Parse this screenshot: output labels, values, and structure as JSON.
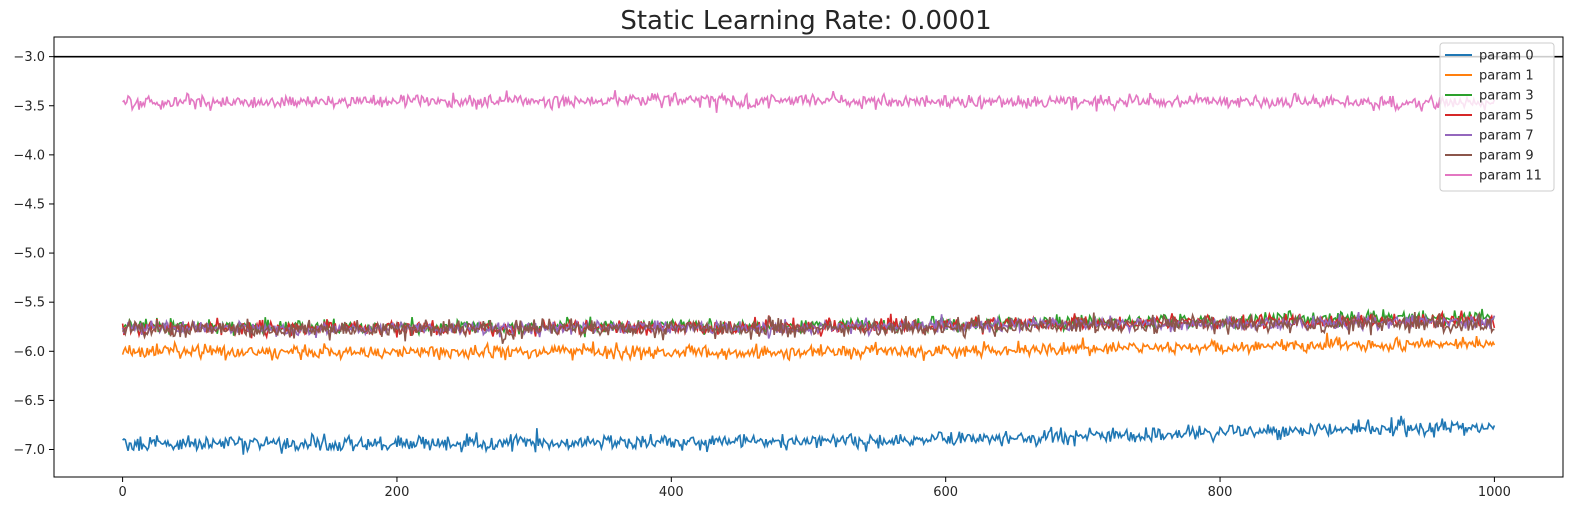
{
  "chart_data": {
    "type": "line",
    "title": "Static Learning Rate: 0.0001",
    "xlabel": "",
    "ylabel": "",
    "xlim": [
      -50,
      1050
    ],
    "ylim": [
      -7.28,
      -2.8
    ],
    "x_ticks": [
      0,
      200,
      400,
      600,
      800,
      1000
    ],
    "x_tick_labels": [
      "0",
      "200",
      "400",
      "600",
      "800",
      "1000"
    ],
    "y_ticks": [
      -3.0,
      -3.5,
      -4.0,
      -4.5,
      -5.0,
      -5.5,
      -6.0,
      -6.5,
      -7.0
    ],
    "y_tick_labels": [
      "−3.0",
      "−3.5",
      "−4.0",
      "−4.5",
      "−5.0",
      "−5.5",
      "−6.0",
      "−6.5",
      "−7.0"
    ],
    "grid": false,
    "legend_position": "top-right",
    "reference_line": {
      "y": -3.0,
      "color": "#000000"
    },
    "x_range": [
      0,
      1000
    ],
    "series": [
      {
        "name": "param 0",
        "color": "#1f77b4",
        "noise": 0.04,
        "trend": [
          [
            0,
            -6.94
          ],
          [
            200,
            -6.94
          ],
          [
            400,
            -6.93
          ],
          [
            500,
            -6.92
          ],
          [
            600,
            -6.9
          ],
          [
            700,
            -6.87
          ],
          [
            800,
            -6.83
          ],
          [
            900,
            -6.79
          ],
          [
            1000,
            -6.77
          ]
        ]
      },
      {
        "name": "param 1",
        "color": "#ff7f0e",
        "noise": 0.035,
        "trend": [
          [
            0,
            -6.0
          ],
          [
            200,
            -6.01
          ],
          [
            400,
            -6.01
          ],
          [
            500,
            -6.01
          ],
          [
            600,
            -5.99
          ],
          [
            700,
            -5.97
          ],
          [
            800,
            -5.96
          ],
          [
            900,
            -5.93
          ],
          [
            1000,
            -5.92
          ]
        ]
      },
      {
        "name": "param 3",
        "color": "#2ca02c",
        "noise": 0.035,
        "trend": [
          [
            0,
            -5.74
          ],
          [
            200,
            -5.76
          ],
          [
            400,
            -5.75
          ],
          [
            500,
            -5.74
          ],
          [
            600,
            -5.72
          ],
          [
            700,
            -5.71
          ],
          [
            800,
            -5.69
          ],
          [
            900,
            -5.66
          ],
          [
            1000,
            -5.65
          ]
        ]
      },
      {
        "name": "param 5",
        "color": "#d62728",
        "noise": 0.035,
        "trend": [
          [
            0,
            -5.75
          ],
          [
            200,
            -5.77
          ],
          [
            400,
            -5.76
          ],
          [
            500,
            -5.76
          ],
          [
            600,
            -5.73
          ],
          [
            700,
            -5.72
          ],
          [
            800,
            -5.7
          ],
          [
            900,
            -5.69
          ],
          [
            1000,
            -5.68
          ]
        ]
      },
      {
        "name": "param 7",
        "color": "#9467bd",
        "noise": 0.035,
        "trend": [
          [
            0,
            -5.76
          ],
          [
            200,
            -5.77
          ],
          [
            400,
            -5.76
          ],
          [
            500,
            -5.76
          ],
          [
            600,
            -5.74
          ],
          [
            700,
            -5.73
          ],
          [
            800,
            -5.72
          ],
          [
            900,
            -5.71
          ],
          [
            1000,
            -5.7
          ]
        ]
      },
      {
        "name": "param 9",
        "color": "#8c564b",
        "noise": 0.045,
        "trend": [
          [
            0,
            -5.77
          ],
          [
            200,
            -5.78
          ],
          [
            400,
            -5.77
          ],
          [
            500,
            -5.77
          ],
          [
            600,
            -5.75
          ],
          [
            700,
            -5.74
          ],
          [
            800,
            -5.73
          ],
          [
            900,
            -5.72
          ],
          [
            1000,
            -5.72
          ]
        ]
      },
      {
        "name": "param 11",
        "color": "#e377c2",
        "noise": 0.035,
        "trend": [
          [
            0,
            -3.47
          ],
          [
            200,
            -3.46
          ],
          [
            400,
            -3.44
          ],
          [
            500,
            -3.45
          ],
          [
            600,
            -3.46
          ],
          [
            700,
            -3.46
          ],
          [
            800,
            -3.46
          ],
          [
            900,
            -3.47
          ],
          [
            1000,
            -3.47
          ]
        ]
      }
    ]
  }
}
